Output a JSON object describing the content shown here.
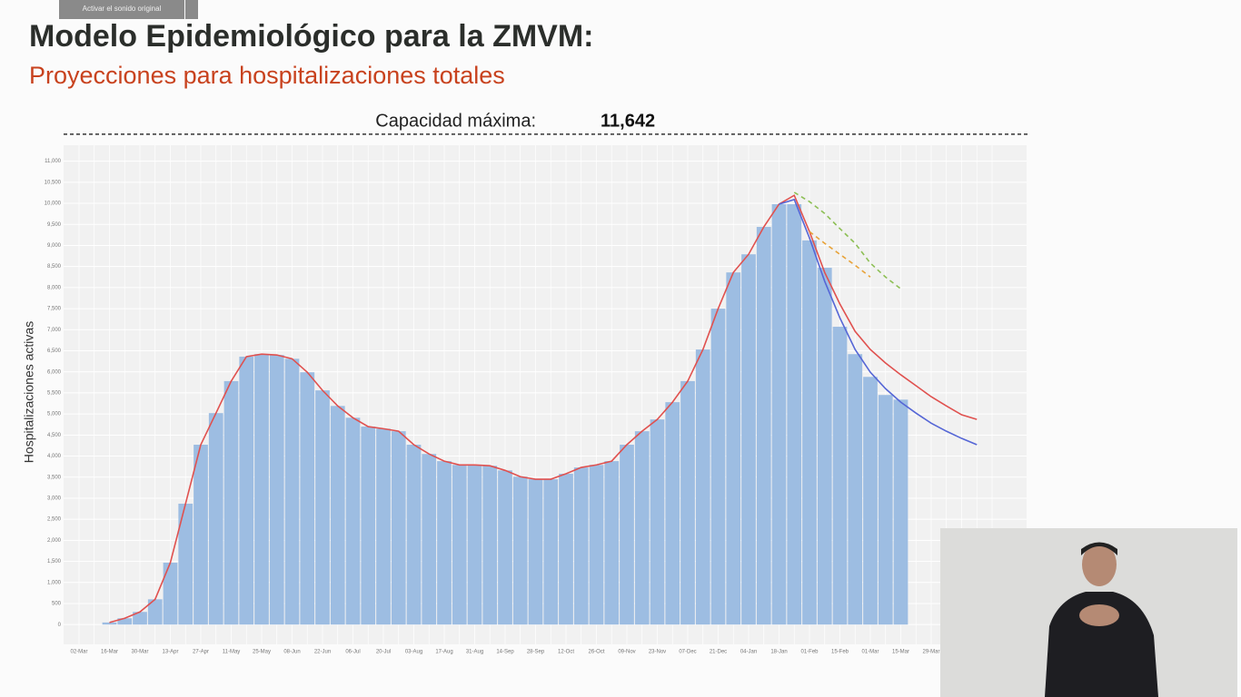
{
  "button": "Activar el sonido original",
  "chart_data": {
    "type": "bar",
    "title": "Modelo Epidemiológico para la ZMVM:",
    "subtitle": "Proyecciones para hospitalizaciones totales",
    "y_label": "Hospitalizaciones activas",
    "capacity": {
      "label": "Capacidad máxima:",
      "value": 11642,
      "value_label": "11,642"
    },
    "categories": [
      "02-Mar",
      null,
      "16-Mar",
      null,
      "30-Mar",
      null,
      "13-Apr",
      null,
      "27-Apr",
      null,
      "11-May",
      null,
      "25-May",
      null,
      "08-Jun",
      null,
      "22-Jun",
      null,
      "06-Jul",
      null,
      "20-Jul",
      null,
      "03-Aug",
      null,
      "17-Aug",
      null,
      "31-Aug",
      null,
      "14-Sep",
      null,
      "28-Sep",
      null,
      "12-Oct",
      null,
      "26-Oct",
      null,
      "09-Nov",
      null,
      "23-Nov",
      null,
      "07-Dec",
      null,
      "21-Dec",
      null,
      "04-Jan",
      null,
      "18-Jan",
      null,
      "01-Feb",
      null,
      "15-Feb",
      null,
      "01-Mar",
      null,
      "15-Mar",
      null,
      "29-Mar",
      null,
      null,
      null,
      null
    ],
    "values": [
      null,
      null,
      50,
      150,
      300,
      600,
      1470,
      2870,
      4270,
      5020,
      5780,
      6360,
      6420,
      6400,
      6310,
      5990,
      5560,
      5190,
      4910,
      4700,
      4650,
      4590,
      4270,
      4050,
      3880,
      3790,
      3790,
      3770,
      3660,
      3510,
      3450,
      3450,
      3580,
      3730,
      3790,
      3880,
      4270,
      4590,
      4870,
      5280,
      5780,
      6530,
      7500,
      8360,
      8790,
      9440,
      9980,
      9980,
      9120,
      8470,
      7070,
      6420,
      5880,
      5450,
      5340,
      null,
      null,
      null,
      null,
      null,
      null
    ],
    "color": "#9dbde2",
    "lines": [
      {
        "color": "#e0514f",
        "dash": false,
        "values": [
          null,
          null,
          50,
          150,
          300,
          600,
          1470,
          2870,
          4270,
          5020,
          5780,
          6360,
          6420,
          6400,
          6310,
          5990,
          5560,
          5190,
          4910,
          4700,
          4650,
          4590,
          4270,
          4050,
          3880,
          3790,
          3790,
          3770,
          3660,
          3510,
          3450,
          3450,
          3580,
          3730,
          3790,
          3880,
          4270,
          4590,
          4870,
          5280,
          5780,
          6530,
          7500,
          8360,
          8790,
          9440,
          9980,
          10190,
          9330,
          8360,
          7610,
          6960,
          6530,
          6210,
          5930,
          5670,
          5410,
          5190,
          4980,
          4870,
          null
        ]
      },
      {
        "color": "#5566d6",
        "dash": false,
        "values": [
          null,
          null,
          null,
          null,
          null,
          null,
          null,
          null,
          null,
          null,
          null,
          null,
          null,
          null,
          null,
          null,
          null,
          null,
          null,
          null,
          null,
          null,
          null,
          null,
          null,
          null,
          null,
          null,
          null,
          null,
          null,
          null,
          null,
          null,
          null,
          null,
          null,
          null,
          null,
          null,
          null,
          null,
          null,
          null,
          null,
          null,
          9980,
          10090,
          9180,
          8150,
          7280,
          6530,
          5990,
          5600,
          5280,
          5020,
          4780,
          4590,
          4420,
          4270,
          null
        ]
      },
      {
        "color": "#8dbf55",
        "dash": true,
        "values": [
          null,
          null,
          null,
          null,
          null,
          null,
          null,
          null,
          null,
          null,
          null,
          null,
          null,
          null,
          null,
          null,
          null,
          null,
          null,
          null,
          null,
          null,
          null,
          null,
          null,
          null,
          null,
          null,
          null,
          null,
          null,
          null,
          null,
          null,
          null,
          null,
          null,
          null,
          null,
          null,
          null,
          null,
          null,
          null,
          null,
          null,
          null,
          10260,
          10040,
          9760,
          9400,
          9050,
          8580,
          8250,
          7970,
          null,
          null,
          null,
          null,
          null,
          null
        ]
      },
      {
        "color": "#e8a33a",
        "dash": true,
        "values": [
          null,
          null,
          null,
          null,
          null,
          null,
          null,
          null,
          null,
          null,
          null,
          null,
          null,
          null,
          null,
          null,
          null,
          null,
          null,
          null,
          null,
          null,
          null,
          null,
          null,
          null,
          null,
          null,
          null,
          null,
          null,
          null,
          null,
          null,
          null,
          null,
          null,
          null,
          null,
          null,
          null,
          null,
          null,
          null,
          null,
          null,
          null,
          null,
          9330,
          9050,
          8790,
          8530,
          8250,
          null,
          null,
          null,
          null,
          null,
          null,
          null,
          null
        ]
      }
    ],
    "ylim": [
      -470,
      11380
    ],
    "yticks": [
      0,
      500,
      {
        "value": 1000,
        "label": "1,000"
      },
      {
        "value": 1500,
        "label": "1,500"
      },
      {
        "value": 2000,
        "label": "2,000"
      },
      {
        "value": 2500,
        "label": "2,500"
      },
      {
        "value": 3000,
        "label": "3,000"
      },
      {
        "value": 3500,
        "label": "3,500"
      },
      {
        "value": 4000,
        "label": "4,000"
      },
      {
        "value": 4500,
        "label": "4,500"
      },
      {
        "value": 5000,
        "label": "5,000"
      },
      {
        "value": 5500,
        "label": "5,500"
      },
      {
        "value": 6000,
        "label": "6,000"
      },
      {
        "value": 6500,
        "label": "6,500"
      },
      {
        "value": 7000,
        "label": "7,000"
      },
      {
        "value": 7500,
        "label": "7,500"
      },
      {
        "value": 8000,
        "label": "8,000"
      },
      {
        "value": 8500,
        "label": "8,500"
      },
      {
        "value": 9000,
        "label": "9,000"
      },
      {
        "value": 9500,
        "label": "9,500"
      },
      {
        "value": 10000,
        "label": "10,000"
      },
      {
        "value": 10500,
        "label": "10,500"
      },
      {
        "value": 11000,
        "label": "11,000"
      }
    ],
    "grid": true
  }
}
